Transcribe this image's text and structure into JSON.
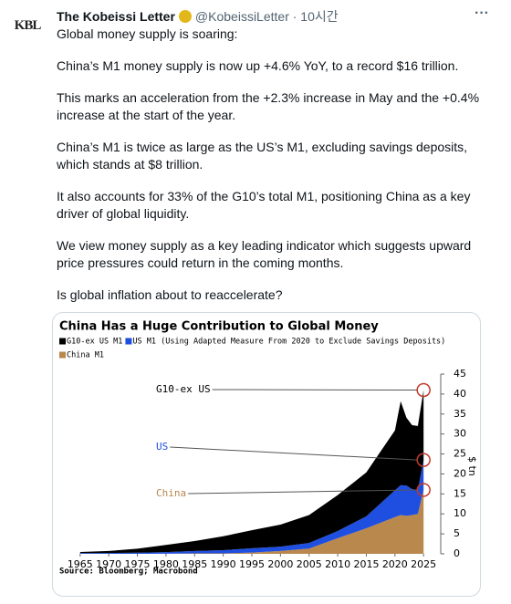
{
  "tweet": {
    "avatar_text": "KBL",
    "author": "The Kobeissi Letter",
    "handle_time": "@KobeissiLetter · 10시간",
    "more": "···",
    "paragraphs": [
      "Global money supply is soaring:",
      "China’s M1 money supply is now up +4.6% YoY, to a record $16 trillion.",
      "This marks an acceleration from the +2.3% increase in May and the +0.4% increase at the start of the year.",
      "China’s M1 is twice as large as the US’s M1, excluding savings deposits, which stands at $8 trillion.",
      "It also accounts for 33% of the G10’s total M1, positioning China as a key driver of global liquidity.",
      "We view money supply as a key leading indicator which suggests upward price pressures could return in the coming months.",
      "Is global inflation about to reaccelerate?"
    ]
  },
  "chart_data": {
    "type": "stacked_area",
    "title": "China Has a Huge Contribution to Global Money",
    "source": "Source: Bloomberg; Macrobond",
    "y_label": "$ tn",
    "x": [
      1965,
      1970,
      1975,
      1980,
      1985,
      1990,
      1995,
      2000,
      2005,
      2010,
      2015,
      2020,
      2021,
      2022,
      2023,
      2024,
      2025
    ],
    "xlim": [
      1962,
      2028
    ],
    "xticks": [
      1965,
      1970,
      1975,
      1980,
      1985,
      1990,
      1995,
      2000,
      2005,
      2010,
      2015,
      2020,
      2025
    ],
    "ylim": [
      0,
      45
    ],
    "yticks": [
      0,
      5,
      10,
      15,
      20,
      25,
      30,
      35,
      40,
      45
    ],
    "series": [
      {
        "name": "China M1",
        "annotation": "China",
        "color": "#b8884c",
        "values": [
          0,
          0,
          0,
          0.03,
          0.1,
          0.1,
          0.3,
          0.7,
          1.3,
          3.9,
          6.4,
          9.2,
          9.7,
          9.5,
          9.7,
          10,
          16
        ]
      },
      {
        "name": "US M1 (Using Adapted Measure From 2020 to Exclude Savings Deposits)",
        "annotation": "US",
        "color": "#1f4fe0",
        "values": [
          0.17,
          0.2,
          0.29,
          0.4,
          0.6,
          0.8,
          1.1,
          1.1,
          1.4,
          1.8,
          3.0,
          6.7,
          7.5,
          7.6,
          6.5,
          6.0,
          7.5
        ]
      },
      {
        "name": "G10-ex US M1",
        "annotation": "G10-ex US",
        "color": "#000000",
        "values": [
          0.3,
          0.5,
          1,
          1.8,
          2.5,
          3.5,
          4.5,
          5.5,
          7,
          9,
          11,
          15,
          21,
          17,
          16,
          16,
          17.5
        ]
      }
    ]
  }
}
